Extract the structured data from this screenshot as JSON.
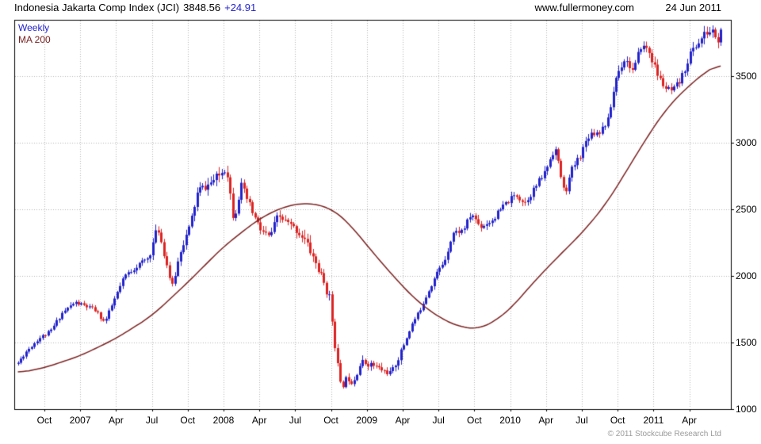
{
  "header": {
    "title": "Indonesia Jakarta Comp Index (JCI)",
    "price": "3848.56",
    "change": "+24.91",
    "watermark": "www.fullermoney.com",
    "date": "24 Jun 2011"
  },
  "legend": {
    "weekly": "Weekly",
    "ma": "MA 200"
  },
  "footer": {
    "copyright": "© 2011 Stockcube Research Ltd"
  },
  "chart_data": {
    "type": "candlestick",
    "title": "Indonesia Jakarta Comp Index (JCI)",
    "interval": "weekly",
    "overlay": "MA 200",
    "last_price": 3848.56,
    "change": 24.91,
    "as_of_date": "24 Jun 2011",
    "x_domain_years": [
      2006.54,
      2011.54
    ],
    "y_domain": [
      1000,
      3922
    ],
    "y_ticks": [
      1000,
      1500,
      2000,
      2500,
      3000,
      3500
    ],
    "x_ticks": [
      {
        "t": 2006.75,
        "label": "Oct"
      },
      {
        "t": 2007.0,
        "label": "2007"
      },
      {
        "t": 2007.25,
        "label": "Apr"
      },
      {
        "t": 2007.5,
        "label": "Jul"
      },
      {
        "t": 2007.75,
        "label": "Oct"
      },
      {
        "t": 2008.0,
        "label": "2008"
      },
      {
        "t": 2008.25,
        "label": "Apr"
      },
      {
        "t": 2008.5,
        "label": "Jul"
      },
      {
        "t": 2008.75,
        "label": "Oct"
      },
      {
        "t": 2009.0,
        "label": "2009"
      },
      {
        "t": 2009.25,
        "label": "Apr"
      },
      {
        "t": 2009.5,
        "label": "Jul"
      },
      {
        "t": 2009.75,
        "label": "Oct"
      },
      {
        "t": 2010.0,
        "label": "2010"
      },
      {
        "t": 2010.25,
        "label": "Apr"
      },
      {
        "t": 2010.5,
        "label": "Jul"
      },
      {
        "t": 2010.75,
        "label": "Oct"
      },
      {
        "t": 2011.0,
        "label": "2011"
      },
      {
        "t": 2011.25,
        "label": "Apr"
      }
    ],
    "colors": {
      "up": "#2222cc",
      "down": "#dd2222",
      "ma": "#7b2020",
      "grid": "#b5b5b5",
      "border": "#000000",
      "copyright": "#9a9a9a"
    },
    "price_close_anchors": [
      [
        2006.56,
        1340
      ],
      [
        2006.62,
        1430
      ],
      [
        2006.71,
        1530
      ],
      [
        2006.79,
        1580
      ],
      [
        2006.87,
        1720
      ],
      [
        2006.96,
        1800
      ],
      [
        2007.02,
        1780
      ],
      [
        2007.1,
        1745
      ],
      [
        2007.17,
        1650
      ],
      [
        2007.24,
        1830
      ],
      [
        2007.31,
        2000
      ],
      [
        2007.4,
        2080
      ],
      [
        2007.48,
        2140
      ],
      [
        2007.54,
        2370
      ],
      [
        2007.6,
        2100
      ],
      [
        2007.64,
        1910
      ],
      [
        2007.7,
        2200
      ],
      [
        2007.76,
        2360
      ],
      [
        2007.82,
        2640
      ],
      [
        2007.89,
        2680
      ],
      [
        2007.96,
        2745
      ],
      [
        2008.02,
        2820
      ],
      [
        2008.07,
        2420
      ],
      [
        2008.12,
        2680
      ],
      [
        2008.21,
        2450
      ],
      [
        2008.26,
        2340
      ],
      [
        2008.32,
        2290
      ],
      [
        2008.38,
        2450
      ],
      [
        2008.44,
        2400
      ],
      [
        2008.5,
        2350
      ],
      [
        2008.56,
        2280
      ],
      [
        2008.62,
        2150
      ],
      [
        2008.69,
        1970
      ],
      [
        2008.74,
        1830
      ],
      [
        2008.78,
        1450
      ],
      [
        2008.82,
        1150
      ],
      [
        2008.86,
        1240
      ],
      [
        2008.9,
        1200
      ],
      [
        2008.96,
        1355
      ],
      [
        2009.04,
        1330
      ],
      [
        2009.12,
        1285
      ],
      [
        2009.17,
        1270
      ],
      [
        2009.24,
        1434
      ],
      [
        2009.31,
        1630
      ],
      [
        2009.36,
        1723
      ],
      [
        2009.42,
        1870
      ],
      [
        2009.49,
        2027
      ],
      [
        2009.54,
        2110
      ],
      [
        2009.6,
        2323
      ],
      [
        2009.67,
        2342
      ],
      [
        2009.73,
        2468
      ],
      [
        2009.79,
        2368
      ],
      [
        2009.87,
        2416
      ],
      [
        2009.96,
        2534
      ],
      [
        2010.04,
        2611
      ],
      [
        2010.1,
        2549
      ],
      [
        2010.17,
        2660
      ],
      [
        2010.24,
        2777
      ],
      [
        2010.31,
        2971
      ],
      [
        2010.38,
        2610
      ],
      [
        2010.43,
        2797
      ],
      [
        2010.49,
        2914
      ],
      [
        2010.55,
        3069
      ],
      [
        2010.62,
        3082
      ],
      [
        2010.68,
        3165
      ],
      [
        2010.74,
        3501
      ],
      [
        2010.8,
        3635
      ],
      [
        2010.86,
        3531
      ],
      [
        2010.91,
        3725
      ],
      [
        2010.96,
        3704
      ],
      [
        2011.03,
        3500
      ],
      [
        2011.08,
        3409
      ],
      [
        2011.13,
        3380
      ],
      [
        2011.19,
        3470
      ],
      [
        2011.26,
        3679
      ],
      [
        2011.32,
        3760
      ],
      [
        2011.36,
        3820
      ],
      [
        2011.42,
        3837
      ],
      [
        2011.45,
        3740
      ],
      [
        2011.478,
        3848.56
      ]
    ],
    "ma200_anchors": [
      [
        2006.56,
        1270
      ],
      [
        2006.75,
        1310
      ],
      [
        2007.0,
        1400
      ],
      [
        2007.25,
        1530
      ],
      [
        2007.5,
        1700
      ],
      [
        2007.75,
        1950
      ],
      [
        2008.0,
        2220
      ],
      [
        2008.25,
        2430
      ],
      [
        2008.42,
        2520
      ],
      [
        2008.58,
        2550
      ],
      [
        2008.75,
        2510
      ],
      [
        2008.88,
        2390
      ],
      [
        2009.0,
        2230
      ],
      [
        2009.15,
        2040
      ],
      [
        2009.33,
        1830
      ],
      [
        2009.5,
        1690
      ],
      [
        2009.65,
        1615
      ],
      [
        2009.79,
        1600
      ],
      [
        2009.92,
        1680
      ],
      [
        2010.0,
        1750
      ],
      [
        2010.17,
        1960
      ],
      [
        2010.33,
        2140
      ],
      [
        2010.5,
        2320
      ],
      [
        2010.67,
        2540
      ],
      [
        2010.83,
        2820
      ],
      [
        2010.96,
        3050
      ],
      [
        2011.1,
        3270
      ],
      [
        2011.25,
        3430
      ],
      [
        2011.35,
        3520
      ],
      [
        2011.48,
        3610
      ]
    ]
  }
}
